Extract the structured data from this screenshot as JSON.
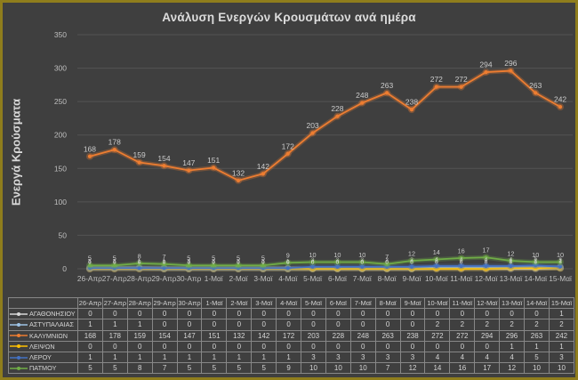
{
  "theme": {
    "background": "#3f3f3f",
    "frame_border": "#8f7d1c",
    "gridline": "#535353",
    "axis_text": "#bfbfbf",
    "title_text": "#dcdcdc",
    "table_border": "#878787",
    "label_text": "#cccccc"
  },
  "chart": {
    "title": "Ανάλυση Ενεργών Κρουσμάτων ανά ημέρα",
    "y_axis_label": "Ενεργά Κρούσματα"
  },
  "chart_data": {
    "type": "line",
    "title": "Ανάλυση Ενεργών Κρουσμάτων ανά ημέρα",
    "xlabel": "",
    "ylabel": "Ενεργά Κρούσματα",
    "ylim": [
      0,
      350
    ],
    "y_ticks": [
      0,
      50,
      100,
      150,
      200,
      250,
      300,
      350
    ],
    "grid": true,
    "legend_position": "table-left",
    "has_data_labels": true,
    "has_data_table": true,
    "categories": [
      "26-Απρ",
      "27-Απρ",
      "28-Απρ",
      "29-Απρ",
      "30-Απρ",
      "1-Μαϊ",
      "2-Μαϊ",
      "3-Μαϊ",
      "4-Μαϊ",
      "5-Μαϊ",
      "6-Μαϊ",
      "7-Μαϊ",
      "8-Μαϊ",
      "9-Μαϊ",
      "10-Μαϊ",
      "11-Μαϊ",
      "12-Μαϊ",
      "13-Μαϊ",
      "14-Μαϊ",
      "15-Μαϊ"
    ],
    "series": [
      {
        "name": "ΑΓΑΘΟΝΗΣΙΟΥ",
        "color": "#d9d9d9",
        "values": [
          0,
          0,
          0,
          0,
          0,
          0,
          0,
          0,
          0,
          0,
          0,
          0,
          0,
          0,
          0,
          0,
          0,
          0,
          0,
          1
        ]
      },
      {
        "name": "ΑΣΤΥΠΑΛΑΙΑΣ",
        "color": "#9dc3e6",
        "values": [
          1,
          1,
          1,
          0,
          0,
          0,
          0,
          0,
          0,
          0,
          0,
          0,
          0,
          0,
          2,
          2,
          2,
          2,
          2,
          2
        ]
      },
      {
        "name": "ΚΑΛΥΜΝΙΩΝ",
        "color": "#ed7d31",
        "values": [
          168,
          178,
          159,
          154,
          147,
          151,
          132,
          142,
          172,
          203,
          228,
          248,
          263,
          238,
          272,
          272,
          294,
          296,
          263,
          242
        ]
      },
      {
        "name": "ΛΕΙΨΩΝ",
        "color": "#ffc000",
        "values": [
          0,
          0,
          0,
          0,
          0,
          0,
          0,
          0,
          0,
          0,
          0,
          0,
          0,
          0,
          0,
          0,
          0,
          1,
          1,
          1
        ]
      },
      {
        "name": "ΛΕΡΟΥ",
        "color": "#4472c4",
        "values": [
          1,
          1,
          1,
          1,
          1,
          1,
          1,
          1,
          1,
          3,
          3,
          3,
          3,
          3,
          4,
          4,
          4,
          4,
          5,
          3
        ]
      },
      {
        "name": "ΠΑΤΜΟΥ",
        "color": "#70ad47",
        "values": [
          5,
          5,
          8,
          7,
          5,
          5,
          5,
          5,
          9,
          10,
          10,
          10,
          7,
          12,
          14,
          16,
          17,
          12,
          10,
          10
        ]
      }
    ]
  }
}
